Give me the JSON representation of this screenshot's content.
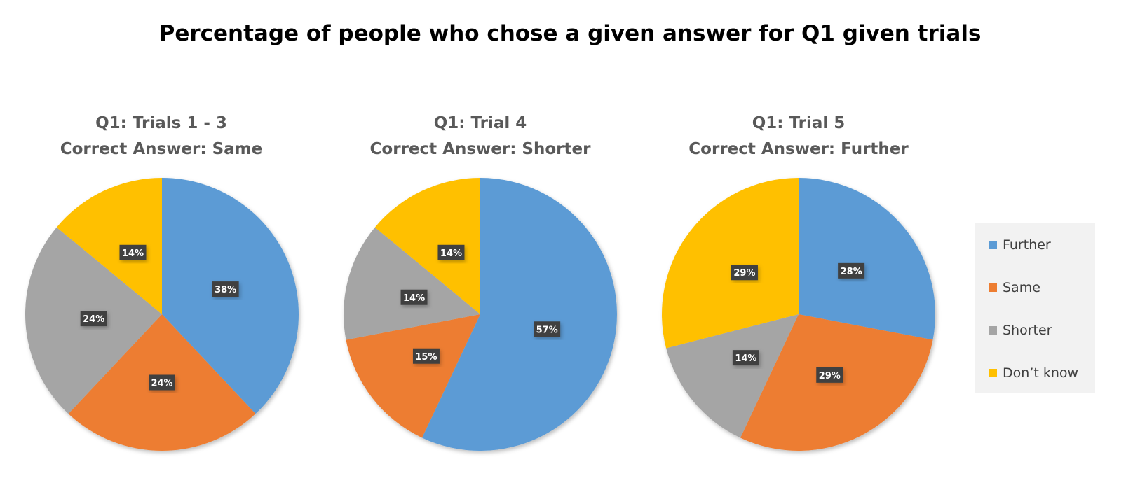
{
  "title": "Percentage of people who chose a given answer for Q1 given trials",
  "legend": {
    "placement": "right",
    "items": [
      {
        "label": "Further",
        "color": "#5b9bd5"
      },
      {
        "label": "Same",
        "color": "#ed7d31"
      },
      {
        "label": "Shorter",
        "color": "#a5a5a5"
      },
      {
        "label": "Don’t know",
        "color": "#ffc000"
      }
    ]
  },
  "chart_data": [
    {
      "type": "pie",
      "title": "Q1: Trials 1 - 3",
      "subtitle": "Correct Answer: Same",
      "categories": [
        "Further",
        "Same",
        "Shorter",
        "Don’t know"
      ],
      "values": [
        38,
        24,
        24,
        14
      ],
      "labels": [
        "38%",
        "24%",
        "24%",
        "14%"
      ]
    },
    {
      "type": "pie",
      "title": "Q1: Trial 4",
      "subtitle": "Correct Answer: Shorter",
      "categories": [
        "Further",
        "Same",
        "Shorter",
        "Don’t know"
      ],
      "values": [
        57,
        15,
        14,
        14
      ],
      "labels": [
        "57%",
        "15%",
        "14%",
        "14%"
      ]
    },
    {
      "type": "pie",
      "title": "Q1: Trial 5",
      "subtitle": "Correct Answer: Further",
      "categories": [
        "Further",
        "Same",
        "Shorter",
        "Don’t know"
      ],
      "values": [
        28,
        29,
        14,
        29
      ],
      "labels": [
        "28%",
        "29%",
        "14%",
        "29%"
      ]
    }
  ]
}
